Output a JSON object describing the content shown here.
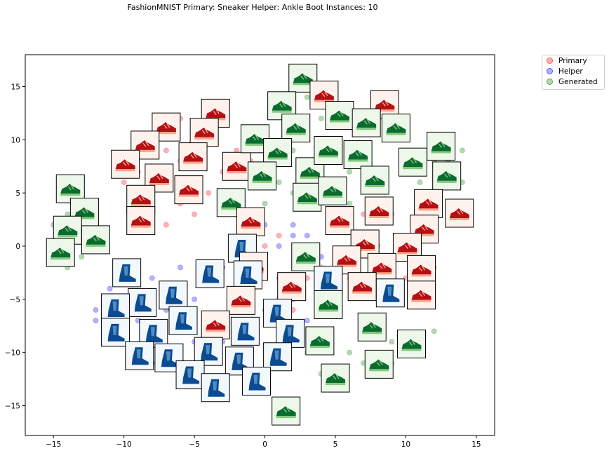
{
  "chart_data": {
    "type": "scatter",
    "title": "FashionMNIST Primary: Sneaker Helper: Ankle Boot Instances: 10",
    "xlabel": "",
    "ylabel": "",
    "xlim": [
      -17,
      16.3
    ],
    "ylim": [
      -17.8,
      18
    ],
    "x_ticks": [
      -15,
      -10,
      -5,
      0,
      5,
      10,
      15
    ],
    "y_ticks": [
      -15,
      -10,
      -5,
      0,
      5,
      10,
      15
    ],
    "x_tick_labels": [
      "−15",
      "−10",
      "−5",
      "0",
      "5",
      "10",
      "15"
    ],
    "y_tick_labels": [
      "−15",
      "−10",
      "−5",
      "0",
      "5",
      "10",
      "15"
    ],
    "grid": false,
    "legend_position": "outside top-right",
    "series": [
      {
        "name": "Primary",
        "color": "#ff0000",
        "points": [
          [
            -8,
            10
          ],
          [
            -7,
            9
          ],
          [
            -6,
            8
          ],
          [
            -9,
            7
          ],
          [
            -7,
            6
          ],
          [
            -8,
            5
          ],
          [
            -6,
            4
          ],
          [
            -9,
            3
          ],
          [
            -7,
            2
          ],
          [
            -5,
            3
          ],
          [
            -4,
            5
          ],
          [
            -3,
            7
          ],
          [
            -2,
            9
          ],
          [
            -4,
            11
          ],
          [
            -6,
            12
          ],
          [
            -3,
            12
          ],
          [
            -1,
            8
          ],
          [
            0,
            6
          ],
          [
            -10,
            6
          ],
          [
            -8,
            2
          ],
          [
            2,
            13
          ],
          [
            4,
            14
          ],
          [
            7,
            12
          ],
          [
            9,
            10
          ],
          [
            6,
            9
          ],
          [
            5,
            3
          ],
          [
            7,
            3
          ],
          [
            9,
            3
          ],
          [
            11,
            2
          ],
          [
            12,
            1
          ],
          [
            8,
            0
          ],
          [
            10,
            -1
          ],
          [
            6,
            -1
          ],
          [
            4,
            -2
          ],
          [
            3,
            -3
          ],
          [
            6,
            -3
          ],
          [
            8,
            -3
          ],
          [
            10,
            -3
          ],
          [
            11,
            -4
          ],
          [
            12,
            -2
          ],
          [
            -1,
            -5
          ],
          [
            -1,
            -7
          ],
          [
            2,
            -6
          ],
          [
            4,
            -6
          ],
          [
            4,
            -8
          ],
          [
            1,
            1
          ],
          [
            0,
            0
          ],
          [
            -2,
            3
          ],
          [
            -5,
            10
          ],
          [
            -7,
            11
          ]
        ]
      },
      {
        "name": "Helper",
        "color": "#0000ff",
        "points": [
          [
            -11,
            -4
          ],
          [
            -12,
            -6
          ],
          [
            -11,
            -8
          ],
          [
            -10,
            -9
          ],
          [
            -9,
            -10
          ],
          [
            -8,
            -8
          ],
          [
            -7,
            -6
          ],
          [
            -6,
            -4
          ],
          [
            -5,
            -5
          ],
          [
            -4,
            -7
          ],
          [
            -3,
            -9
          ],
          [
            -2,
            -10
          ],
          [
            -1,
            -12
          ],
          [
            0,
            -13
          ],
          [
            1,
            -11
          ],
          [
            2,
            -9
          ],
          [
            3,
            -7
          ],
          [
            2,
            -5
          ],
          [
            1,
            -3
          ],
          [
            0,
            -1
          ],
          [
            1,
            0
          ],
          [
            2,
            1
          ],
          [
            -2,
            -1
          ],
          [
            -3,
            -2
          ],
          [
            -4,
            -3
          ],
          [
            -6,
            -2
          ],
          [
            -8,
            -3
          ],
          [
            -9,
            -5
          ],
          [
            -10,
            -7
          ],
          [
            -12,
            -7
          ],
          [
            -7,
            -11
          ],
          [
            -5,
            -12
          ],
          [
            -3,
            -13
          ],
          [
            -1,
            -9
          ],
          [
            0,
            -6
          ],
          [
            1,
            -5
          ],
          [
            -2,
            -6
          ],
          [
            -5,
            -9
          ],
          [
            -6,
            -10
          ],
          [
            3,
            -2
          ],
          [
            4,
            -1
          ],
          [
            2,
            2
          ],
          [
            0,
            2
          ],
          [
            -1,
            1
          ],
          [
            -2,
            -3
          ],
          [
            -8,
            -11
          ],
          [
            -4,
            -11
          ],
          [
            -9,
            -7
          ],
          [
            4,
            -4
          ],
          [
            3,
            1
          ]
        ]
      },
      {
        "name": "Generated",
        "color": "#008000",
        "points": [
          [
            2,
            15
          ],
          [
            3,
            14
          ],
          [
            1,
            13
          ],
          [
            4,
            12
          ],
          [
            3,
            11
          ],
          [
            5,
            10
          ],
          [
            2,
            9
          ],
          [
            1,
            8
          ],
          [
            0,
            10
          ],
          [
            -1,
            11
          ],
          [
            5,
            8
          ],
          [
            6,
            7
          ],
          [
            4,
            7
          ],
          [
            3,
            5
          ],
          [
            5,
            5
          ],
          [
            6,
            4
          ],
          [
            8,
            11
          ],
          [
            10,
            11
          ],
          [
            11,
            9
          ],
          [
            12,
            8
          ],
          [
            13,
            7
          ],
          [
            14,
            6
          ],
          [
            13,
            8
          ],
          [
            14,
            9
          ],
          [
            11,
            6
          ],
          [
            10,
            7
          ],
          [
            -15,
            2
          ],
          [
            -14,
            3
          ],
          [
            -13,
            1
          ],
          [
            -12,
            0
          ],
          [
            -14,
            5
          ],
          [
            -13,
            -1
          ],
          [
            -14,
            -2
          ],
          [
            -12,
            4
          ],
          [
            0,
            4
          ],
          [
            1,
            6
          ],
          [
            2,
            5
          ],
          [
            -2,
            5
          ],
          [
            8,
            -8
          ],
          [
            9,
            -9
          ],
          [
            10,
            -10
          ],
          [
            11,
            -9
          ],
          [
            12,
            -8
          ],
          [
            9,
            -11
          ],
          [
            3,
            -10
          ],
          [
            4,
            -12
          ],
          [
            6,
            -10
          ],
          [
            7,
            -11
          ],
          [
            5,
            -13
          ],
          [
            1,
            -16
          ],
          [
            2,
            -15
          ]
        ]
      }
    ],
    "image_thumbnails": [
      {
        "x": 2.7,
        "y": 15.8,
        "set": "Generated"
      },
      {
        "x": 4.2,
        "y": 14.2,
        "set": "Primary"
      },
      {
        "x": 1.2,
        "y": 13.2,
        "set": "Generated"
      },
      {
        "x": 5.3,
        "y": 12.3,
        "set": "Generated"
      },
      {
        "x": 8.5,
        "y": 13.3,
        "set": "Primary"
      },
      {
        "x": 7.2,
        "y": 11.6,
        "set": "Generated"
      },
      {
        "x": 9.3,
        "y": 11.1,
        "set": "Generated"
      },
      {
        "x": 2.2,
        "y": 11.1,
        "set": "Generated"
      },
      {
        "x": -7,
        "y": 11.2,
        "set": "Primary"
      },
      {
        "x": -3.5,
        "y": 12.5,
        "set": "Primary"
      },
      {
        "x": -4.3,
        "y": 10.7,
        "set": "Primary"
      },
      {
        "x": -8.5,
        "y": 9.5,
        "set": "Primary"
      },
      {
        "x": -9.9,
        "y": 7.7,
        "set": "Primary"
      },
      {
        "x": -5.1,
        "y": 8.4,
        "set": "Primary"
      },
      {
        "x": -2,
        "y": 7.5,
        "set": "Primary"
      },
      {
        "x": -7.5,
        "y": 6.4,
        "set": "Primary"
      },
      {
        "x": -5.4,
        "y": 5.3,
        "set": "Primary"
      },
      {
        "x": -8.8,
        "y": 4.4,
        "set": "Primary"
      },
      {
        "x": -8.8,
        "y": 2.4,
        "set": "Primary"
      },
      {
        "x": -0.7,
        "y": 10.1,
        "set": "Generated"
      },
      {
        "x": 0.9,
        "y": 8.8,
        "set": "Generated"
      },
      {
        "x": -0.2,
        "y": 6.6,
        "set": "Generated"
      },
      {
        "x": 3.2,
        "y": 7,
        "set": "Generated"
      },
      {
        "x": 4.5,
        "y": 9,
        "set": "Generated"
      },
      {
        "x": 6.6,
        "y": 8.6,
        "set": "Generated"
      },
      {
        "x": 7.8,
        "y": 6.2,
        "set": "Generated"
      },
      {
        "x": 3,
        "y": 4.6,
        "set": "Generated"
      },
      {
        "x": 4.8,
        "y": 5.2,
        "set": "Generated"
      },
      {
        "x": -2.4,
        "y": 4.1,
        "set": "Generated"
      },
      {
        "x": -13.8,
        "y": 5.4,
        "set": "Generated"
      },
      {
        "x": -12.8,
        "y": 3.2,
        "set": "Generated"
      },
      {
        "x": -14,
        "y": 1.5,
        "set": "Generated"
      },
      {
        "x": -12,
        "y": 0.6,
        "set": "Generated"
      },
      {
        "x": -14.5,
        "y": -0.6,
        "set": "Generated"
      },
      {
        "x": 12.5,
        "y": 9.4,
        "set": "Generated"
      },
      {
        "x": 10.5,
        "y": 7.9,
        "set": "Generated"
      },
      {
        "x": 12.9,
        "y": 6.6,
        "set": "Generated"
      },
      {
        "x": 11.6,
        "y": 4,
        "set": "Primary"
      },
      {
        "x": 13.8,
        "y": 3.1,
        "set": "Primary"
      },
      {
        "x": 11.3,
        "y": 1.6,
        "set": "Primary"
      },
      {
        "x": 8.1,
        "y": 3.3,
        "set": "Primary"
      },
      {
        "x": 5.3,
        "y": 2.4,
        "set": "Primary"
      },
      {
        "x": -1,
        "y": 2.3,
        "set": "Primary"
      },
      {
        "x": 7.1,
        "y": 0.2,
        "set": "Primary"
      },
      {
        "x": 10.1,
        "y": -0.1,
        "set": "Primary"
      },
      {
        "x": -1.6,
        "y": -0.2,
        "set": "Helper"
      },
      {
        "x": -0.8,
        "y": -1.9,
        "set": "Primary"
      },
      {
        "x": 2.9,
        "y": -1,
        "set": "Generated"
      },
      {
        "x": 5.8,
        "y": -1.3,
        "set": "Primary"
      },
      {
        "x": 8.3,
        "y": -2,
        "set": "Primary"
      },
      {
        "x": 11.1,
        "y": -2.2,
        "set": "Primary"
      },
      {
        "x": -9.8,
        "y": -2.5,
        "set": "Helper"
      },
      {
        "x": -3.9,
        "y": -2.6,
        "set": "Helper"
      },
      {
        "x": -1.2,
        "y": -2.7,
        "set": "Helper"
      },
      {
        "x": 4.5,
        "y": -3.2,
        "set": "Helper"
      },
      {
        "x": 1.9,
        "y": -3.8,
        "set": "Primary"
      },
      {
        "x": 6.9,
        "y": -3.8,
        "set": "Primary"
      },
      {
        "x": 8.9,
        "y": -4.4,
        "set": "Helper"
      },
      {
        "x": 11.1,
        "y": -4.6,
        "set": "Primary"
      },
      {
        "x": -6.5,
        "y": -4.6,
        "set": "Helper"
      },
      {
        "x": -8.7,
        "y": -5.3,
        "set": "Helper"
      },
      {
        "x": -10.6,
        "y": -5.8,
        "set": "Helper"
      },
      {
        "x": -1.7,
        "y": -5.1,
        "set": "Primary"
      },
      {
        "x": 4.5,
        "y": -5.5,
        "set": "Generated"
      },
      {
        "x": -5.8,
        "y": -7,
        "set": "Helper"
      },
      {
        "x": 0.9,
        "y": -6.3,
        "set": "Helper"
      },
      {
        "x": -3.5,
        "y": -7.4,
        "set": "Primary"
      },
      {
        "x": -1.4,
        "y": -8,
        "set": "Helper"
      },
      {
        "x": -10.6,
        "y": -8.1,
        "set": "Helper"
      },
      {
        "x": -7.9,
        "y": -8.2,
        "set": "Helper"
      },
      {
        "x": 1.8,
        "y": -8.2,
        "set": "Helper"
      },
      {
        "x": 3.9,
        "y": -8.9,
        "set": "Generated"
      },
      {
        "x": 7.6,
        "y": -7.6,
        "set": "Generated"
      },
      {
        "x": 10.4,
        "y": -9.2,
        "set": "Generated"
      },
      {
        "x": -8.9,
        "y": -10.3,
        "set": "Helper"
      },
      {
        "x": -6.8,
        "y": -10.5,
        "set": "Helper"
      },
      {
        "x": -4,
        "y": -9.9,
        "set": "Helper"
      },
      {
        "x": -1.8,
        "y": -10.8,
        "set": "Helper"
      },
      {
        "x": 0.9,
        "y": -10.4,
        "set": "Helper"
      },
      {
        "x": 8.1,
        "y": -11.1,
        "set": "Generated"
      },
      {
        "x": -5.3,
        "y": -12.1,
        "set": "Helper"
      },
      {
        "x": -3.5,
        "y": -13.3,
        "set": "Helper"
      },
      {
        "x": -0.6,
        "y": -12.7,
        "set": "Helper"
      },
      {
        "x": 5,
        "y": -12.4,
        "set": "Generated"
      },
      {
        "x": 1.5,
        "y": -15.5,
        "set": "Generated"
      }
    ]
  }
}
